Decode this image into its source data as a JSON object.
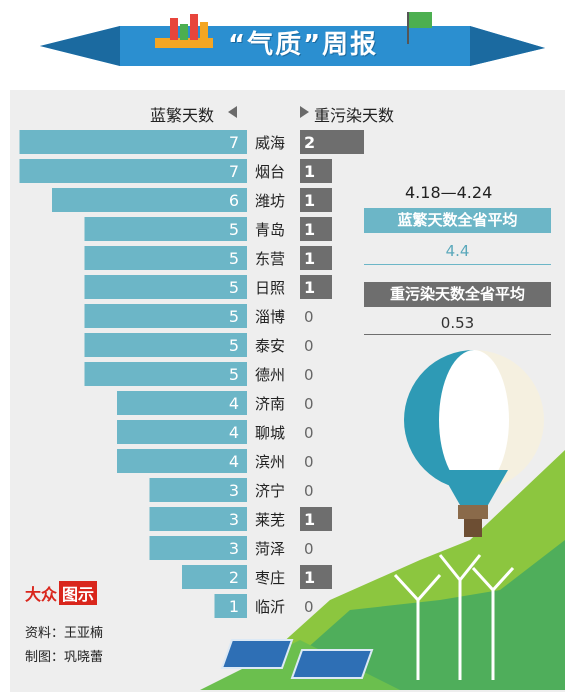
{
  "banner": {
    "title": "“气质”周报"
  },
  "headers": {
    "left": "蓝繁天数",
    "right": "重污染天数"
  },
  "stats": {
    "range": "4.18—4.24",
    "blue_label": "蓝繁天数全省平均",
    "blue_value": "4.4",
    "heavy_label": "重污染天数全省平均",
    "heavy_value": "0.53"
  },
  "logo": {
    "part1": "大众",
    "part2": "图示"
  },
  "credits": {
    "source": "资料：王亚楠",
    "maker": "制图：巩晓蕾"
  },
  "colors": {
    "blue_bar": "#6cb6c7",
    "gray_bar": "#6e6e6e",
    "panel": "#eeeeee",
    "banner": "#2b8fd0"
  },
  "chart_data": {
    "type": "bar",
    "categories": [
      "威海",
      "烟台",
      "潍坊",
      "青岛",
      "东营",
      "日照",
      "淄博",
      "泰安",
      "德州",
      "济南",
      "聊城",
      "滨州",
      "济宁",
      "莱芜",
      "菏泽",
      "枣庄",
      "临沂"
    ],
    "series": [
      {
        "name": "蓝繁天数",
        "values": [
          7,
          7,
          6,
          5,
          5,
          5,
          5,
          5,
          5,
          4,
          4,
          4,
          3,
          3,
          3,
          2,
          1
        ]
      },
      {
        "name": "重污染天数",
        "values": [
          2,
          1,
          1,
          1,
          1,
          1,
          0,
          0,
          0,
          0,
          0,
          0,
          0,
          1,
          0,
          1,
          0
        ]
      }
    ]
  }
}
